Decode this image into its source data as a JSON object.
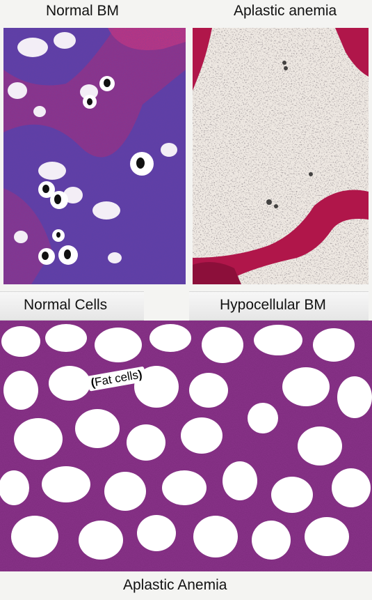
{
  "labels": {
    "normal_bm": "Normal BM",
    "aplastic_anemia_top": "Aplastic anemia",
    "normal_cells": "Normal Cells",
    "hypocellular_bm": "Hypocellular BM",
    "fat_cells": "Fat cells",
    "aplastic_anemia_bottom": "Aplastic Anemia"
  },
  "colors": {
    "marrow_purple": "#5a3fa8",
    "stain_magenta": "#c0276a",
    "trabecula_red": "#b0164a",
    "tissue_purple": "#7a2a7a",
    "fat_white": "#ffffff"
  },
  "panels": [
    {
      "name": "normal-bm-micrograph",
      "depicts": "dense purple hematopoietic marrow with scattered megakaryocytes"
    },
    {
      "name": "aplastic-anemia-micrograph",
      "depicts": "pale fatty marrow with magenta bone trabeculae"
    },
    {
      "name": "hypocellular-bm-micrograph",
      "depicts": "fat cells separated by sparse purple tissue"
    }
  ]
}
